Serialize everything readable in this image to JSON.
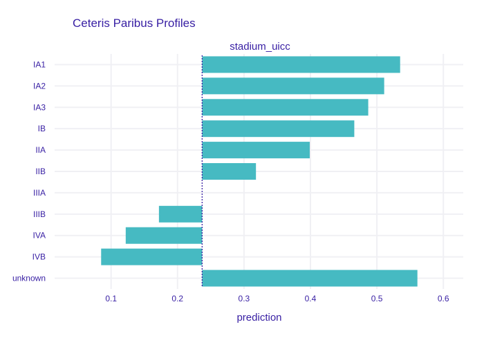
{
  "chart_data": {
    "type": "bar",
    "orientation": "horizontal",
    "title": "Ceteris Paribus Profiles",
    "subtitle": "stadium_uicc",
    "xlabel": "prediction",
    "ylabel": "",
    "categories": [
      "IA1",
      "IA2",
      "IA3",
      "IB",
      "IIA",
      "IIB",
      "IIIA",
      "IIIB",
      "IVA",
      "IVB",
      "unknown"
    ],
    "values": [
      0.535,
      0.511,
      0.487,
      0.466,
      0.399,
      0.318,
      0.237,
      0.172,
      0.122,
      0.085,
      0.561
    ],
    "baseline": 0.237,
    "xlim": [
      0.015,
      0.63
    ],
    "xticks": [
      0.1,
      0.2,
      0.3,
      0.4,
      0.5,
      0.6
    ],
    "xtick_labels": [
      "0.1",
      "0.2",
      "0.3",
      "0.4",
      "0.5",
      "0.6"
    ],
    "grid": true,
    "colors": {
      "bar": "#46bac2",
      "baseline": "#371ea3",
      "text": "#371ea3",
      "grid": "#f0f0f4"
    }
  }
}
